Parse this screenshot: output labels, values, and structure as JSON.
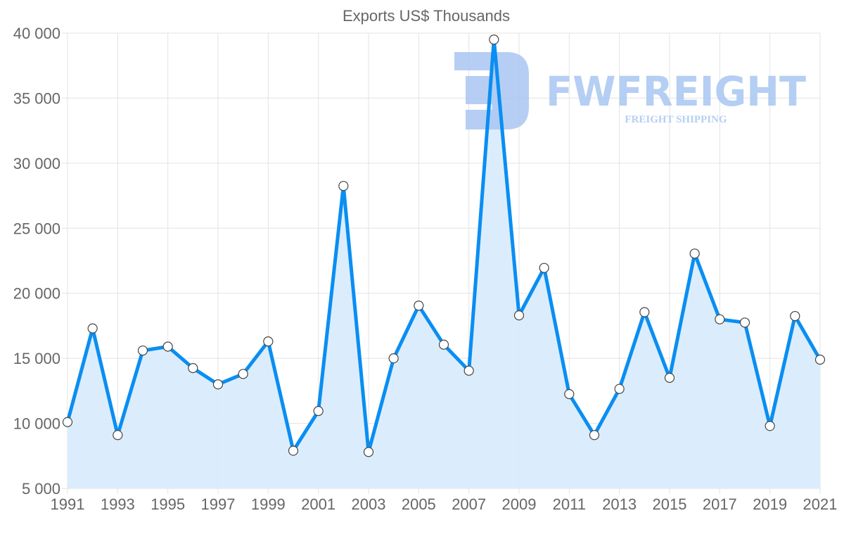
{
  "chart_data": {
    "type": "line",
    "title": "Exports US$ Thousands",
    "xlabel": "",
    "ylabel": "",
    "ylim": [
      5000,
      40000
    ],
    "yticks": [
      5000,
      10000,
      15000,
      20000,
      25000,
      30000,
      35000,
      40000
    ],
    "ytick_labels": [
      "5 000",
      "10 000",
      "15 000",
      "20 000",
      "25 000",
      "30 000",
      "35 000",
      "40 000"
    ],
    "x": [
      1991,
      1992,
      1993,
      1994,
      1995,
      1996,
      1997,
      1998,
      1999,
      2000,
      2001,
      2002,
      2003,
      2004,
      2005,
      2006,
      2007,
      2008,
      2009,
      2010,
      2011,
      2012,
      2013,
      2014,
      2015,
      2016,
      2017,
      2018,
      2019,
      2020,
      2021
    ],
    "xtick_labels": [
      "1991",
      "1993",
      "1995",
      "1997",
      "1999",
      "2001",
      "2003",
      "2005",
      "2007",
      "2009",
      "2011",
      "2013",
      "2015",
      "2017",
      "2019",
      "2021"
    ],
    "series": [
      {
        "name": "Exports US$ Thousands",
        "values": [
          10100,
          17300,
          9100,
          15600,
          15900,
          14250,
          13000,
          13800,
          16300,
          7900,
          10950,
          28250,
          7800,
          15000,
          19050,
          16050,
          14050,
          39500,
          18300,
          21950,
          12250,
          9100,
          12650,
          18550,
          13500,
          23050,
          18000,
          17750,
          9800,
          18250,
          14900
        ]
      }
    ],
    "grid": true,
    "legend": "none",
    "colors": {
      "line": "#0a8ef2",
      "fill": "#d9ecfc",
      "grid": "#e3e3e3",
      "watermark": "#a9c6f2"
    }
  },
  "watermark": {
    "brand": "FWFREIGHT",
    "tagline": "FREIGHT SHIPPING"
  }
}
